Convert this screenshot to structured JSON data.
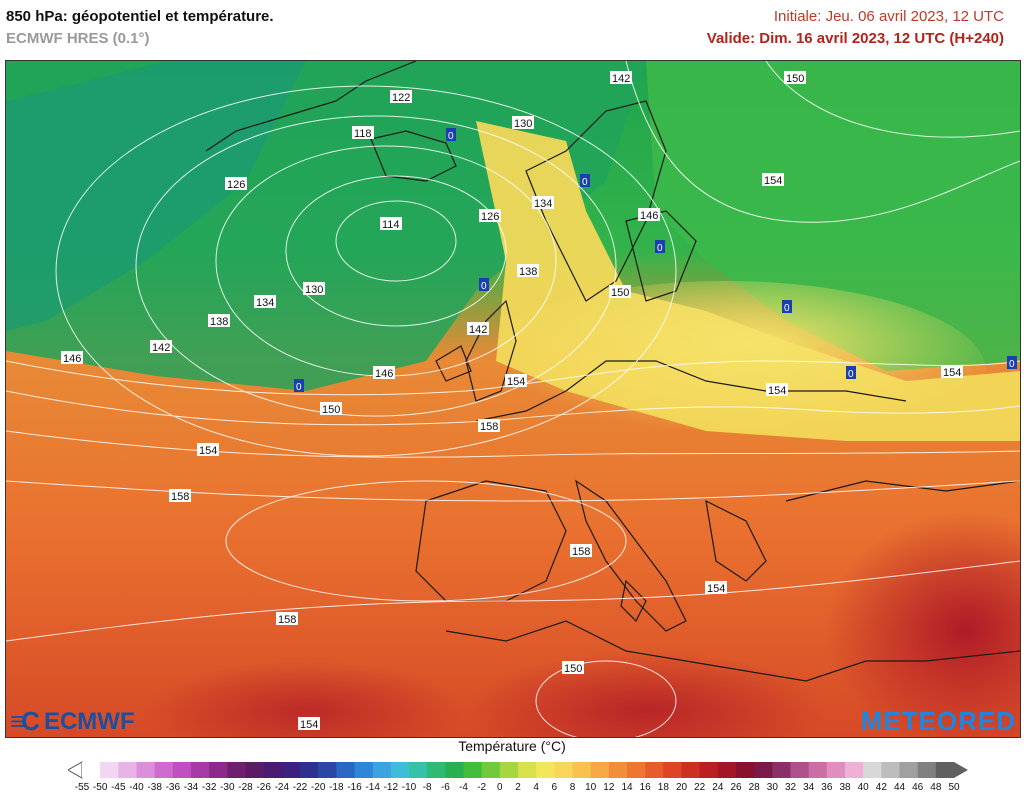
{
  "header": {
    "title": "850 hPa: géopotentiel et température.",
    "model": "ECMWF HRES (0.1°)",
    "init": "Initiale: Jeu. 06 avril 2023, 12 UTC",
    "valid": "Valide: Dim. 16 avril 2023, 12 UTC (H+240)"
  },
  "map": {
    "geopotential_labels": [
      "142",
      "150",
      "122",
      "118",
      "130",
      "126",
      "114",
      "154",
      "134",
      "126",
      "146",
      "138",
      "150",
      "130",
      "134",
      "138",
      "142",
      "146",
      "142",
      "146",
      "154",
      "150",
      "154",
      "158",
      "154",
      "158",
      "158",
      "154",
      "158",
      "150",
      "154",
      "154"
    ],
    "zero_isotherm_label": "0"
  },
  "logos": {
    "left": "ECMWF",
    "right": "METEORED"
  },
  "legend": {
    "title": "Température (°C)",
    "ticks": [
      "-55",
      "-50",
      "-45",
      "-40",
      "-38",
      "-36",
      "-34",
      "-32",
      "-30",
      "-28",
      "-26",
      "-24",
      "-22",
      "-20",
      "-18",
      "-16",
      "-14",
      "-12",
      "-10",
      "-8",
      "-6",
      "-4",
      "-2",
      "0",
      "2",
      "4",
      "6",
      "8",
      "10",
      "12",
      "14",
      "16",
      "18",
      "20",
      "22",
      "24",
      "26",
      "28",
      "30",
      "32",
      "34",
      "36",
      "38",
      "40",
      "42",
      "44",
      "46",
      "48",
      "50"
    ],
    "colors": [
      "#ffffff",
      "#f2d6f2",
      "#e8b4e8",
      "#dc8edc",
      "#cf6bcf",
      "#c04fc0",
      "#a83aa8",
      "#8c2a8c",
      "#6e1f6e",
      "#5a1a66",
      "#4a1a70",
      "#3c1f7e",
      "#2f2f8e",
      "#2a46a6",
      "#2a66c2",
      "#2f86d6",
      "#3aa3e0",
      "#3fbcd8",
      "#35c2a8",
      "#2cba74",
      "#27b04e",
      "#44bd3c",
      "#73c93c",
      "#a7d63f",
      "#d7e24a",
      "#f4e65a",
      "#f8d659",
      "#f8c24e",
      "#f6a843",
      "#f28e3a",
      "#ee7532",
      "#e85c2b",
      "#de4426",
      "#cf2f23",
      "#bb1f22",
      "#a21626",
      "#8a1030",
      "#7a1a48",
      "#8a2f6a",
      "#b0508a",
      "#cc6ea6",
      "#e08dbf",
      "#eeb0d4",
      "#d8d8d8",
      "#bdbdbd",
      "#a0a0a0",
      "#808080",
      "#606060"
    ]
  }
}
